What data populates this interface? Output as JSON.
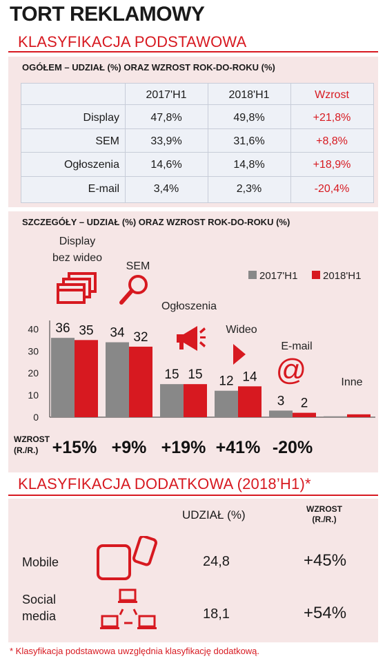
{
  "title": "TORT REKLAMOWY",
  "section1": {
    "title": "KLASYFIKACJA PODSTAWOWA",
    "table_title": "OGÓŁEM – UDZIAŁ (%) ORAZ WZROST ROK-DO-ROKU (%)",
    "headers": [
      "2017'H1",
      "2018'H1",
      "Wzrost"
    ],
    "rows": [
      {
        "label": "Display",
        "v2017": "47,8%",
        "v2018": "49,8%",
        "growth": "+21,8%"
      },
      {
        "label": "SEM",
        "v2017": "33,9%",
        "v2018": "31,6%",
        "growth": "+8,8%"
      },
      {
        "label": "Ogłoszenia",
        "v2017": "14,6%",
        "v2018": "14,8%",
        "growth": "+18,9%"
      },
      {
        "label": "E-mail",
        "v2017": "3,4%",
        "v2018": "2,3%",
        "growth": "-20,4%"
      }
    ]
  },
  "chart_data": {
    "type": "bar",
    "title": "SZCZEGÓŁY – UDZIAŁ (%) ORAZ WZROST ROK-DO-ROKU (%)",
    "categories": [
      "Display bez wideo",
      "SEM",
      "Ogłoszenia",
      "Wideo",
      "E-mail",
      "Inne"
    ],
    "category_labels": [
      [
        "Display",
        "bez wideo"
      ],
      [
        "SEM"
      ],
      [
        "Ogłoszenia"
      ],
      [
        "Wideo"
      ],
      [
        "E-mail"
      ],
      [
        "Inne"
      ]
    ],
    "series": [
      {
        "name": "2017'H1",
        "values": [
          36,
          34,
          15,
          12,
          3,
          0.4
        ],
        "labels": [
          "36",
          "34",
          "15",
          "12",
          "3",
          ""
        ]
      },
      {
        "name": "2018'H1",
        "values": [
          35,
          32,
          15,
          14,
          2,
          1.3
        ],
        "labels": [
          "35",
          "32",
          "15",
          "14",
          "2",
          ""
        ]
      }
    ],
    "yticks": [
      "0",
      "10",
      "20",
      "30",
      "40"
    ],
    "ylim": [
      0,
      42
    ],
    "legend": "top-right",
    "colors": {
      "s2017": "#888888",
      "s2018": "#d71920"
    },
    "growth_label": [
      "WZROST",
      "(R./R.)"
    ],
    "growth": [
      "+15%",
      "+9%",
      "+19%",
      "+41%",
      "-20%",
      ""
    ]
  },
  "section2": {
    "title": "KLASYFIKACJA DODATKOWA (2018’H1)*",
    "col_share": "UDZIAŁ (%)",
    "col_growth": [
      "WZROST",
      "(R./R.)"
    ],
    "rows": [
      {
        "label": [
          "Mobile"
        ],
        "icon": "mobile-devices-icon",
        "share": "24,8",
        "growth": "+45%"
      },
      {
        "label": [
          "Social",
          "media"
        ],
        "icon": "social-network-icon",
        "share": "18,1",
        "growth": "+54%"
      }
    ]
  },
  "footnote": "* Klasyfikacja podstawowa uwzględnia klasyfikację dodatkową."
}
